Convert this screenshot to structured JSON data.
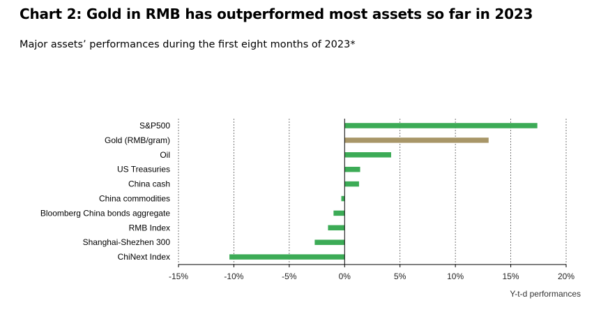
{
  "title": "Chart 2: Gold in RMB has outperformed most assets so far in 2023",
  "subtitle": "Major assets’ performances during the first eight months of 2023*",
  "colors": {
    "bar": "#3cab56",
    "highlight": "#a89668",
    "axis": "#000000",
    "grid": "#555555"
  },
  "chart_data": {
    "type": "bar",
    "orientation": "horizontal",
    "categories": [
      "S&P500",
      "Gold (RMB/gram)",
      "Oil",
      "US Treasuries",
      "China cash",
      "China commodities",
      "Bloomberg China bonds aggregate",
      "RMB Index",
      "Shanghai-Shezhen 300",
      "ChiNext Index"
    ],
    "values": [
      17.4,
      13.0,
      4.2,
      1.4,
      1.3,
      -0.3,
      -1.0,
      -1.5,
      -2.7,
      -10.4
    ],
    "highlight_category": "Gold (RMB/gram)",
    "xlim": [
      -15,
      20
    ],
    "xticks": [
      -15,
      -10,
      -5,
      0,
      5,
      10,
      15,
      20
    ],
    "xtick_labels": [
      "-15%",
      "-10%",
      "-5%",
      "0%",
      "5%",
      "10%",
      "15%",
      "20%"
    ],
    "xlabel": "Y-t-d performances",
    "ylabel": "",
    "grid": "vertical dashed"
  }
}
